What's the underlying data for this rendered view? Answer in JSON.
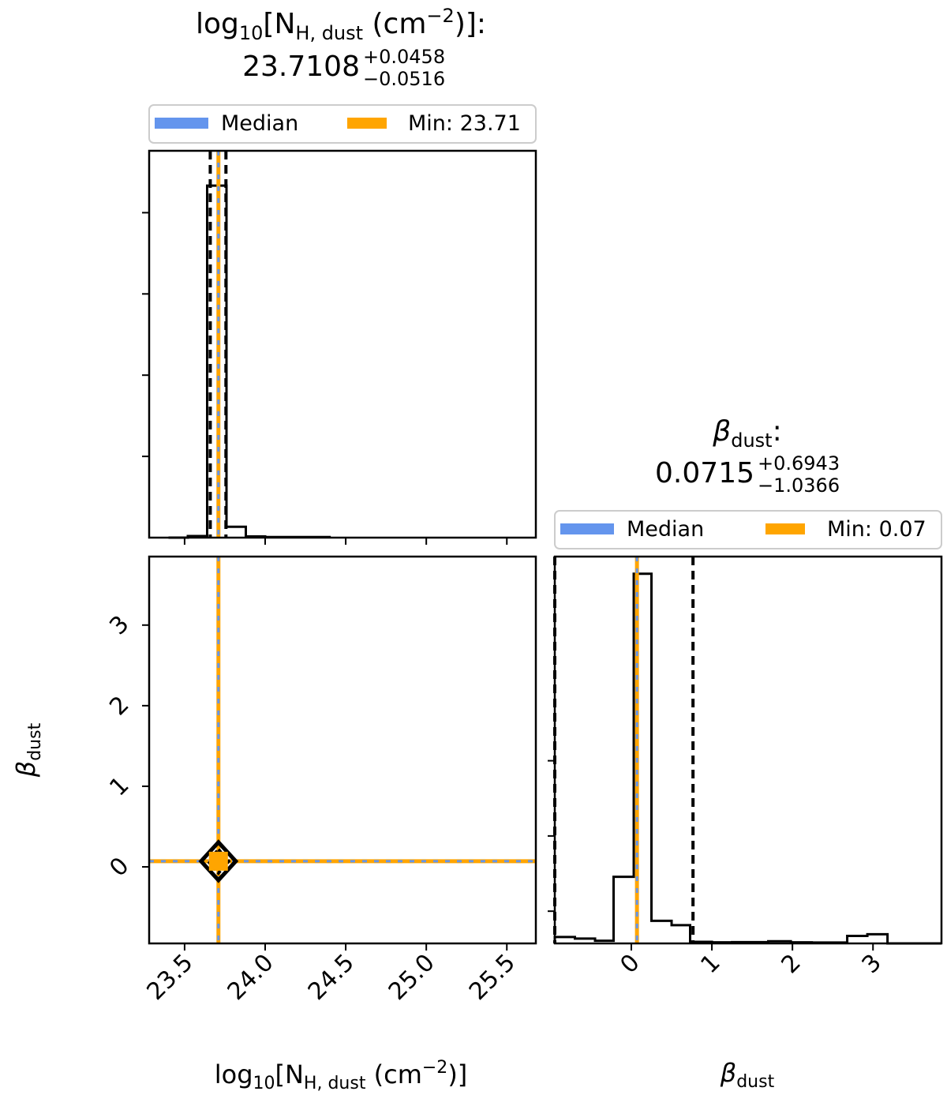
{
  "colors": {
    "median": "#6495ED",
    "min": "#FFA500",
    "hist": "#000000",
    "frame": "#000000"
  },
  "chart_data": [
    {
      "panel": "top-left",
      "type": "bar",
      "title_base": "log",
      "title_sub": "10",
      "title_mid": "[N",
      "title_sub2": "H, dust",
      "title_unit": " (cm",
      "title_sup": "−2",
      "title_end": ")]:",
      "value_text": "23.7108",
      "err_plus": "+0.0458",
      "err_minus": "−0.0516",
      "legend": [
        {
          "label": "Median",
          "color": "#6495ED"
        },
        {
          "label": "Min: 23.71",
          "color": "#FFA500"
        }
      ],
      "xlim": [
        23.28,
        25.68
      ],
      "ylim": [
        0,
        1.0
      ],
      "bins": [
        {
          "x0": 23.4,
          "x1": 23.52,
          "y": 0.0
        },
        {
          "x0": 23.52,
          "x1": 23.64,
          "y": 0.004
        },
        {
          "x0": 23.64,
          "x1": 23.76,
          "y": 0.91
        },
        {
          "x0": 23.76,
          "x1": 23.88,
          "y": 0.028
        },
        {
          "x0": 23.88,
          "x1": 24.0,
          "y": 0.003
        },
        {
          "x0": 24.0,
          "x1": 24.4,
          "y": 0.0015
        }
      ],
      "quantiles": [
        23.6592,
        23.7108,
        23.7566
      ],
      "median": 23.7108,
      "min": 23.71,
      "yticks": [
        0.21,
        0.42,
        0.63,
        0.84
      ]
    },
    {
      "panel": "bottom-left",
      "type": "scatter",
      "xlim": [
        23.28,
        25.68
      ],
      "ylim": [
        -0.95,
        3.85
      ],
      "xticks": [
        "23.5",
        "24.0",
        "24.5",
        "25.0",
        "25.5"
      ],
      "xtick_values": [
        23.5,
        24.0,
        24.5,
        25.0,
        25.5
      ],
      "yticks": [
        "0",
        "1",
        "2",
        "3"
      ],
      "ytick_values": [
        0,
        1,
        2,
        3
      ],
      "xlabel_base": "log",
      "xlabel_sub": "10",
      "xlabel_mid": "[N",
      "xlabel_sub2": "H, dust",
      "xlabel_unit": " (cm",
      "xlabel_sup": "−2",
      "xlabel_end": ")]",
      "ylabel_base": "β",
      "ylabel_sub": "dust",
      "point": {
        "x": 23.71,
        "y": 0.07
      },
      "median": {
        "x": 23.7108,
        "y": 0.0715
      },
      "min": {
        "x": 23.71,
        "y": 0.07
      }
    },
    {
      "panel": "bottom-right",
      "type": "bar",
      "title_base": "β",
      "title_sub": "dust",
      "title_end": ":",
      "value_text": "0.0715",
      "err_plus": "+0.6943",
      "err_minus": "−1.0366",
      "legend": [
        {
          "label": "Median",
          "color": "#6495ED"
        },
        {
          "label": "Min: 0.07",
          "color": "#FFA500"
        }
      ],
      "xlim": [
        -0.95,
        3.85
      ],
      "ylim": [
        0,
        3.6
      ],
      "bins": [
        {
          "x0": -0.95,
          "x1": -0.7,
          "y": 0.06
        },
        {
          "x0": -0.7,
          "x1": -0.45,
          "y": 0.045
        },
        {
          "x0": -0.45,
          "x1": -0.22,
          "y": 0.025
        },
        {
          "x0": -0.22,
          "x1": 0.03,
          "y": 0.62
        },
        {
          "x0": 0.03,
          "x1": 0.25,
          "y": 3.44
        },
        {
          "x0": 0.25,
          "x1": 0.5,
          "y": 0.21
        },
        {
          "x0": 0.5,
          "x1": 0.73,
          "y": 0.17
        },
        {
          "x0": 0.73,
          "x1": 1.0,
          "y": 0.015
        },
        {
          "x0": 1.0,
          "x1": 1.25,
          "y": 0.01
        },
        {
          "x0": 1.25,
          "x1": 1.7,
          "y": 0.012
        },
        {
          "x0": 1.7,
          "x1": 1.98,
          "y": 0.02
        },
        {
          "x0": 1.98,
          "x1": 2.24,
          "y": 0.01
        },
        {
          "x0": 2.24,
          "x1": 2.68,
          "y": 0.008
        },
        {
          "x0": 2.68,
          "x1": 2.93,
          "y": 0.07
        },
        {
          "x0": 2.93,
          "x1": 3.18,
          "y": 0.085
        },
        {
          "x0": 3.18,
          "x1": 3.85,
          "y": 0.0
        }
      ],
      "quantiles": [
        -0.9651,
        0.0715,
        0.7658
      ],
      "median": 0.0715,
      "min": 0.07,
      "xticks": [
        "0",
        "1",
        "2",
        "3"
      ],
      "xtick_values": [
        0,
        1,
        2,
        3
      ],
      "yticks": [
        0.3,
        1.0,
        1.7
      ],
      "xlabel_base": "β",
      "xlabel_sub": "dust"
    }
  ]
}
